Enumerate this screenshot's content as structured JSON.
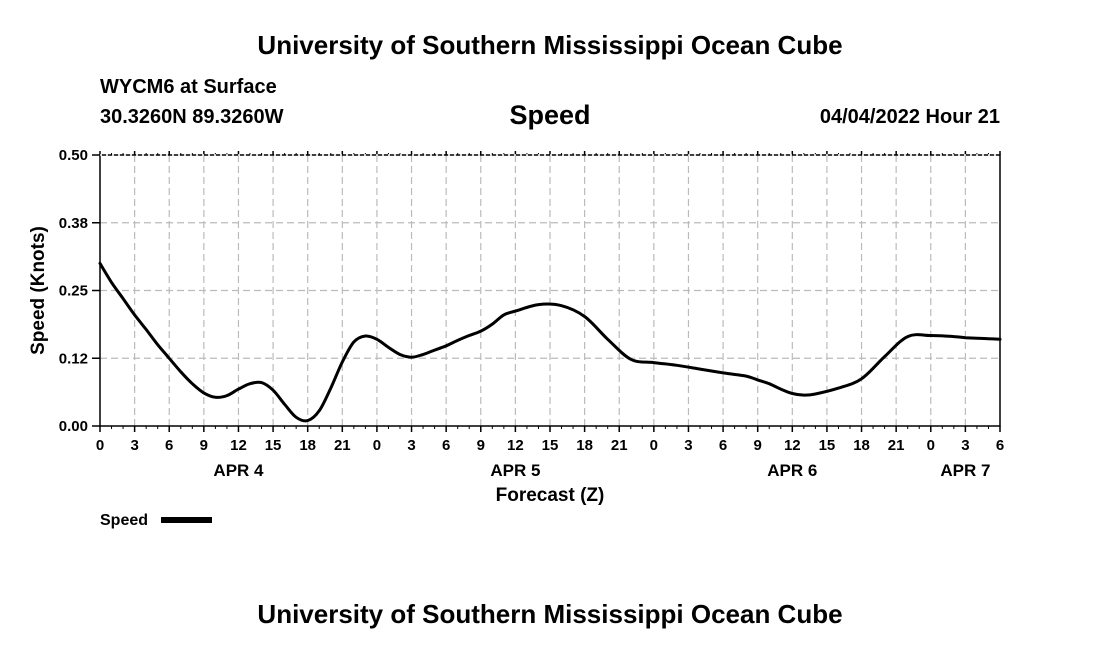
{
  "header": {
    "title": "University of Southern Mississippi Ocean Cube",
    "station": "WYCM6 at Surface",
    "coordinates": "30.3260N  89.3260W",
    "variable": "Speed",
    "datetime": "04/04/2022 Hour 21"
  },
  "footer": {
    "title": "University of Southern Mississippi Ocean Cube"
  },
  "colors": {
    "line": "#000000",
    "grid": "#bbbbbb"
  },
  "chart_data": {
    "type": "line",
    "title": "Speed",
    "xlabel": "Forecast (Z)",
    "ylabel": "Speed (Knots)",
    "xlim": [
      0,
      78
    ],
    "ylim": [
      0,
      0.5
    ],
    "grid": true,
    "x_tick_labels": [
      "0",
      "3",
      "6",
      "9",
      "12",
      "15",
      "18",
      "21",
      "0",
      "3",
      "6",
      "9",
      "12",
      "15",
      "18",
      "21",
      "0",
      "3",
      "6",
      "9",
      "12",
      "15",
      "18",
      "21",
      "0",
      "3",
      "6"
    ],
    "y_tick_labels": [
      "0.00",
      "0.12",
      "0.25",
      "0.38",
      "0.50"
    ],
    "y_tick_values": [
      0,
      0.125,
      0.25,
      0.375,
      0.5
    ],
    "day_labels": [
      {
        "label": "APR 4",
        "x": 12
      },
      {
        "label": "APR 5",
        "x": 36
      },
      {
        "label": "APR 6",
        "x": 60
      },
      {
        "label": "APR 7",
        "x": 75
      }
    ],
    "legend": {
      "position": "bottom-left",
      "entries": [
        "Speed"
      ]
    },
    "series": [
      {
        "name": "Speed",
        "x": [
          0,
          1,
          2,
          3,
          4,
          5,
          6,
          7,
          8,
          9,
          10,
          11,
          12,
          13,
          14,
          15,
          16,
          17,
          18,
          19,
          20,
          21,
          22,
          23,
          24,
          25,
          26,
          27,
          28,
          29,
          30,
          31,
          32,
          33,
          34,
          35,
          36,
          38,
          40,
          42,
          44,
          46,
          48,
          50,
          52,
          54,
          56,
          57,
          58,
          59,
          60,
          61,
          62,
          64,
          66,
          68,
          70,
          72,
          74,
          75,
          76,
          77,
          78
        ],
        "y": [
          0.3,
          0.265,
          0.235,
          0.205,
          0.178,
          0.15,
          0.125,
          0.1,
          0.078,
          0.061,
          0.053,
          0.056,
          0.068,
          0.078,
          0.08,
          0.066,
          0.04,
          0.016,
          0.01,
          0.028,
          0.07,
          0.118,
          0.155,
          0.166,
          0.16,
          0.145,
          0.132,
          0.127,
          0.132,
          0.14,
          0.148,
          0.158,
          0.167,
          0.175,
          0.188,
          0.205,
          0.212,
          0.224,
          0.222,
          0.202,
          0.16,
          0.123,
          0.117,
          0.112,
          0.105,
          0.098,
          0.092,
          0.085,
          0.078,
          0.068,
          0.06,
          0.057,
          0.059,
          0.07,
          0.087,
          0.128,
          0.165,
          0.167,
          0.165,
          0.163,
          0.162,
          0.161,
          0.16
        ]
      }
    ]
  }
}
